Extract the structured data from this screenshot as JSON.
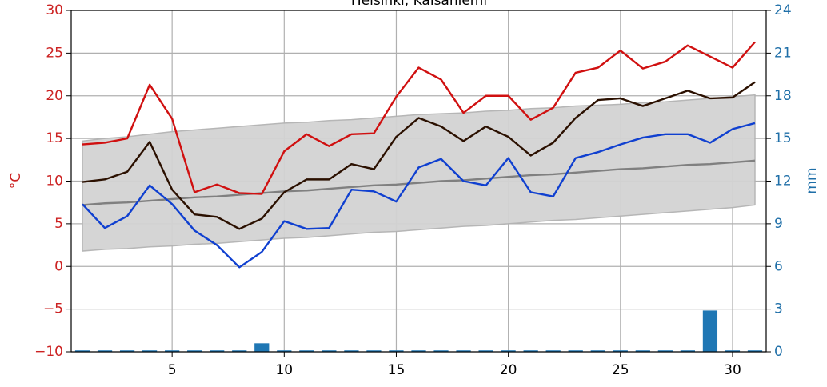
{
  "chart_data": {
    "type": "line",
    "title": "Helsinki, Kaisaniemi",
    "ylabel": "°C",
    "y2label": "mm",
    "x": [
      1,
      2,
      3,
      4,
      5,
      6,
      7,
      8,
      9,
      10,
      11,
      12,
      13,
      14,
      15,
      16,
      17,
      18,
      19,
      20,
      21,
      22,
      23,
      24,
      25,
      26,
      27,
      28,
      29,
      30,
      31
    ],
    "xlim": [
      0.5,
      31.5
    ],
    "xticks": [
      5,
      10,
      15,
      20,
      25,
      30
    ],
    "ylim": [
      -10,
      30
    ],
    "yticks": [
      {
        "value": -10,
        "label": "−10"
      },
      {
        "value": -5,
        "label": "−5"
      },
      0,
      5,
      10,
      15,
      20,
      25,
      30
    ],
    "y2lim": [
      0,
      24
    ],
    "y2ticks": [
      0,
      3,
      6,
      9,
      12,
      15,
      18,
      21,
      24
    ],
    "grid": true,
    "band": {
      "color": "#d3d3d3",
      "edge": "#b3b3b3",
      "upper": [
        14.7,
        15.0,
        15.2,
        15.5,
        15.8,
        16.0,
        16.2,
        16.4,
        16.6,
        16.8,
        16.9,
        17.1,
        17.2,
        17.4,
        17.6,
        17.8,
        17.9,
        18.0,
        18.2,
        18.3,
        18.5,
        18.6,
        18.8,
        18.9,
        19.0,
        19.2,
        19.3,
        19.5,
        19.7,
        19.9,
        20.1
      ],
      "lower": [
        1.8,
        2.0,
        2.1,
        2.3,
        2.4,
        2.6,
        2.7,
        2.9,
        3.1,
        3.3,
        3.4,
        3.6,
        3.8,
        4.0,
        4.1,
        4.3,
        4.5,
        4.7,
        4.8,
        5.0,
        5.2,
        5.4,
        5.5,
        5.7,
        5.9,
        6.1,
        6.3,
        6.5,
        6.7,
        6.9,
        7.2
      ]
    },
    "series": [
      {
        "type": "line",
        "color": "#808080",
        "values": [
          7.2,
          7.4,
          7.5,
          7.7,
          7.9,
          8.1,
          8.2,
          8.4,
          8.6,
          8.8,
          8.9,
          9.1,
          9.3,
          9.5,
          9.6,
          9.8,
          10.0,
          10.1,
          10.3,
          10.5,
          10.7,
          10.8,
          11.0,
          11.2,
          11.4,
          11.5,
          11.7,
          11.9,
          12.0,
          12.2,
          12.4
        ]
      },
      {
        "type": "line",
        "color": "#d01010",
        "values": [
          14.3,
          14.5,
          15.0,
          21.3,
          17.3,
          8.7,
          9.6,
          8.6,
          8.5,
          13.5,
          15.5,
          14.1,
          15.5,
          15.6,
          19.9,
          23.3,
          21.9,
          18.0,
          20.0,
          20.0,
          17.2,
          18.6,
          22.7,
          23.3,
          25.3,
          23.2,
          24.0,
          25.9,
          24.6,
          23.3,
          26.3
        ]
      },
      {
        "type": "line",
        "color": "#2b1000",
        "values": [
          9.9,
          10.2,
          11.1,
          14.6,
          9.0,
          6.1,
          5.8,
          4.4,
          5.6,
          8.7,
          10.2,
          10.2,
          12.0,
          11.4,
          15.2,
          17.4,
          16.4,
          14.7,
          16.4,
          15.2,
          13.0,
          14.5,
          17.4,
          19.5,
          19.7,
          18.8,
          19.7,
          20.6,
          19.7,
          19.8,
          21.6
        ]
      },
      {
        "type": "line",
        "color": "#1040d0",
        "values": [
          7.3,
          4.5,
          5.9,
          9.5,
          7.3,
          4.2,
          2.5,
          -0.1,
          1.7,
          5.3,
          4.4,
          4.5,
          9.0,
          8.8,
          7.6,
          11.6,
          12.6,
          10.0,
          9.5,
          12.7,
          8.7,
          8.2,
          12.7,
          13.4,
          14.3,
          15.1,
          15.5,
          15.5,
          14.5,
          16.1,
          16.8
        ]
      },
      {
        "type": "bar",
        "axis": "y2",
        "color": "#1f77b4",
        "values": [
          0.1,
          0.1,
          0.1,
          0.1,
          0.1,
          0.1,
          0.1,
          0.1,
          0.6,
          0.1,
          0.1,
          0.1,
          0.1,
          0.1,
          0.1,
          0.1,
          0.1,
          0.1,
          0.1,
          0.1,
          0.1,
          0.1,
          0.1,
          0.1,
          0.1,
          0.1,
          0.1,
          0.1,
          2.9,
          0.1,
          0.1
        ]
      }
    ]
  }
}
